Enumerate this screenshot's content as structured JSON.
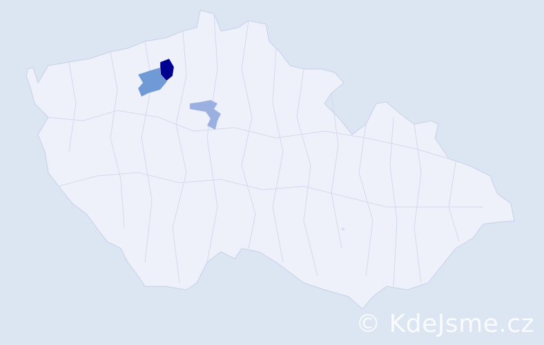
{
  "map": {
    "colors": {
      "background": "#dce5f2",
      "land": "#eef1fa",
      "border": "#c8d0ea",
      "high": "#000090",
      "medium": "#6f9ad6",
      "low": "#9ab0e0"
    },
    "highlighted_regions": [
      {
        "level": "high"
      },
      {
        "level": "medium"
      },
      {
        "level": "low"
      }
    ]
  },
  "watermark": "© KdeJsme.cz"
}
